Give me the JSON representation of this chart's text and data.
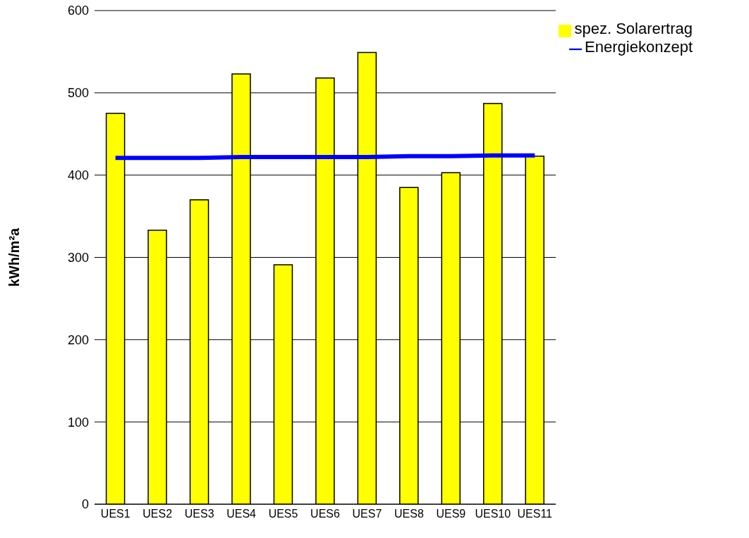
{
  "chart_data": {
    "type": "bar",
    "ylabel": "kWh/m²a",
    "categories": [
      "UES1",
      "UES2",
      "UES3",
      "UES4",
      "UES5",
      "UES6",
      "UES7",
      "UES8",
      "UES9",
      "UES10",
      "UES11"
    ],
    "series": [
      {
        "name": "spez. Solarertrag",
        "color": "#ffff00",
        "values": [
          475,
          333,
          370,
          523,
          291,
          518,
          549,
          385,
          403,
          487,
          423
        ]
      },
      {
        "name": "Energiekonzept",
        "type": "line",
        "color": "#0000ff",
        "values": [
          421,
          421,
          421,
          422,
          422,
          422,
          422,
          423,
          423,
          424,
          424
        ]
      }
    ],
    "ylim": [
      0,
      600
    ],
    "yticks": [
      0,
      100,
      200,
      300,
      400,
      500,
      600
    ],
    "grid": "y",
    "legend": "top right",
    "marker": "none"
  }
}
